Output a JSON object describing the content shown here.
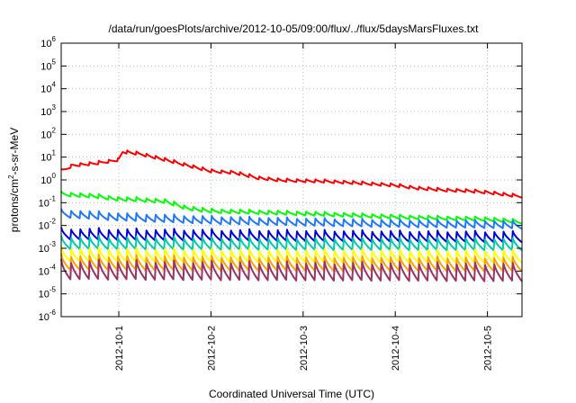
{
  "chart_data": {
    "type": "line",
    "title": "/data/run/goesPlots/archive/2012-10-05/09:00/flux/../flux/5daysMarsFluxes.txt",
    "xlabel": "Coordinated Universal Time (UTC)",
    "ylabel_parts": {
      "base": "protons/cm",
      "sup": "2",
      "rest": "-s-sr-MeV"
    },
    "y_scale": "log",
    "ylim": [
      1e-06,
      1000000.0
    ],
    "y_tick_labels": [
      {
        "value": 1e-06,
        "base": "10",
        "exp": "-6"
      },
      {
        "value": 1e-05,
        "base": "10",
        "exp": "-5"
      },
      {
        "value": 0.0001,
        "base": "10",
        "exp": "-4"
      },
      {
        "value": 0.001,
        "base": "10",
        "exp": "-3"
      },
      {
        "value": 0.01,
        "base": "10",
        "exp": "-2"
      },
      {
        "value": 0.1,
        "base": "10",
        "exp": "-1"
      },
      {
        "value": 1,
        "base": "10",
        "exp": "0"
      },
      {
        "value": 10,
        "base": "10",
        "exp": "1"
      },
      {
        "value": 100,
        "base": "10",
        "exp": "2"
      },
      {
        "value": 1000,
        "base": "10",
        "exp": "3"
      },
      {
        "value": 10000,
        "base": "10",
        "exp": "4"
      },
      {
        "value": 100000,
        "base": "10",
        "exp": "5"
      },
      {
        "value": 1000000,
        "base": "10",
        "exp": "6"
      }
    ],
    "xlim": [
      "2012-09-30T09:00",
      "2012-10-05T09:00"
    ],
    "x_ticks": [
      "2012-10-1",
      "2012-10-2",
      "2012-10-3",
      "2012-10-4",
      "2012-10-5"
    ],
    "x_tick_dates": [
      "2012-10-01T00:00",
      "2012-10-02T00:00",
      "2012-10-03T00:00",
      "2012-10-04T00:00",
      "2012-10-05T00:00"
    ],
    "grid": true,
    "series": [
      {
        "color": "#ff0000",
        "x": [
          "2012-09-30T09:00",
          "2012-09-30T12:00",
          "2012-09-30T18:00",
          "2012-10-01T00:00",
          "2012-10-01T01:00",
          "2012-10-01T06:00",
          "2012-10-01T12:00",
          "2012-10-01T18:00",
          "2012-10-02T00:00",
          "2012-10-02T06:00",
          "2012-10-02T12:00",
          "2012-10-02T18:00",
          "2012-10-03T00:00",
          "2012-10-03T06:00",
          "2012-10-03T12:00",
          "2012-10-03T18:00",
          "2012-10-04T00:00",
          "2012-10-04T06:00",
          "2012-10-04T12:00",
          "2012-10-04T18:00",
          "2012-10-05T00:00",
          "2012-10-05T06:00",
          "2012-10-05T09:00"
        ],
        "values": [
          2.5,
          4.5,
          5.5,
          8,
          18,
          14,
          8,
          4.5,
          2.5,
          2.2,
          1.3,
          1.0,
          0.95,
          0.9,
          0.8,
          0.7,
          0.6,
          0.45,
          0.38,
          0.35,
          0.3,
          0.22,
          0.2
        ],
        "ripple": 1.45
      },
      {
        "color": "#00ff00",
        "x": [
          "2012-09-30T09:00",
          "2012-09-30T18:00",
          "2012-10-01T00:00",
          "2012-10-01T06:00",
          "2012-10-01T12:00",
          "2012-10-01T18:00",
          "2012-10-02T00:00",
          "2012-10-02T12:00",
          "2012-10-03T00:00",
          "2012-10-03T12:00",
          "2012-10-04T00:00",
          "2012-10-04T12:00",
          "2012-10-05T00:00",
          "2012-10-05T09:00"
        ],
        "values": [
          0.25,
          0.2,
          0.15,
          0.14,
          0.12,
          0.06,
          0.045,
          0.04,
          0.035,
          0.03,
          0.025,
          0.022,
          0.02,
          0.015
        ],
        "ripple": 1.6
      },
      {
        "color": "#1e78ff",
        "x": [
          "2012-09-30T09:00",
          "2012-10-01T00:00",
          "2012-10-02T00:00",
          "2012-10-03T00:00",
          "2012-10-04T00:00",
          "2012-10-05T00:00",
          "2012-10-05T09:00"
        ],
        "values": [
          0.035,
          0.025,
          0.018,
          0.015,
          0.013,
          0.012,
          0.011
        ],
        "ripple": 2.4
      },
      {
        "color": "#0000dd",
        "x": [
          "2012-09-30T09:00",
          "2012-10-01T00:00",
          "2012-10-02T00:00",
          "2012-10-03T00:00",
          "2012-10-04T00:00",
          "2012-10-05T00:00",
          "2012-10-05T09:00"
        ],
        "values": [
          0.0045,
          0.0042,
          0.004,
          0.0038,
          0.0036,
          0.0035,
          0.0034
        ],
        "ripple": 3.5
      },
      {
        "color": "#00ccaa",
        "x": [
          "2012-09-30T09:00",
          "2012-10-02T00:00",
          "2012-10-05T09:00"
        ],
        "values": [
          0.0018,
          0.0017,
          0.0016
        ],
        "ripple": 4.0
      },
      {
        "color": "#ffff00",
        "x": [
          "2012-09-30T09:00",
          "2012-10-02T00:00",
          "2012-10-05T09:00"
        ],
        "values": [
          0.00055,
          0.0005,
          0.00048
        ],
        "ripple": 4.5
      },
      {
        "color": "#ffa000",
        "x": [
          "2012-09-30T09:00",
          "2012-10-02T00:00",
          "2012-10-05T09:00"
        ],
        "values": [
          0.00025,
          0.00023,
          0.00022
        ],
        "ripple": 5.0
      },
      {
        "color": "#993366",
        "x": [
          "2012-09-30T09:00",
          "2012-10-02T00:00",
          "2012-10-05T09:00"
        ],
        "values": [
          0.00012,
          0.00011,
          0.0001
        ],
        "ripple": 8.0
      }
    ]
  }
}
